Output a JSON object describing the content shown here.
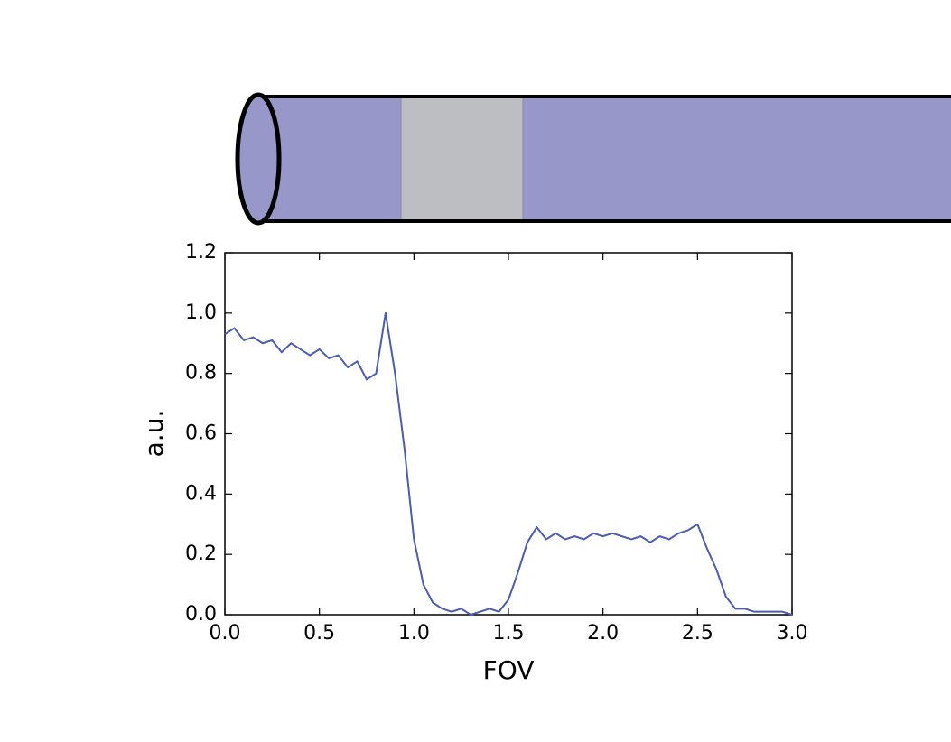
{
  "chart_data": {
    "type": "line",
    "xlabel": "FOV",
    "ylabel": "a.u.",
    "x": [
      0,
      0.05,
      0.1,
      0.15,
      0.2,
      0.25,
      0.3,
      0.35,
      0.4,
      0.45,
      0.5,
      0.55,
      0.6,
      0.65,
      0.7,
      0.75,
      0.8,
      0.85,
      0.9,
      0.95,
      1.0,
      1.05,
      1.1,
      1.15,
      1.2,
      1.25,
      1.3,
      1.35,
      1.4,
      1.45,
      1.5,
      1.55,
      1.6,
      1.65,
      1.7,
      1.75,
      1.8,
      1.85,
      1.9,
      1.95,
      2.0,
      2.05,
      2.1,
      2.15,
      2.2,
      2.25,
      2.3,
      2.35,
      2.4,
      2.45,
      2.5,
      2.55,
      2.6,
      2.65,
      2.7,
      2.75,
      2.8,
      2.85,
      2.9,
      2.95,
      3.0
    ],
    "values": [
      0.93,
      0.95,
      0.91,
      0.92,
      0.9,
      0.91,
      0.87,
      0.9,
      0.88,
      0.86,
      0.88,
      0.85,
      0.86,
      0.82,
      0.84,
      0.78,
      0.8,
      1.0,
      0.8,
      0.55,
      0.25,
      0.1,
      0.04,
      0.02,
      0.01,
      0.02,
      0.0,
      0.01,
      0.02,
      0.01,
      0.05,
      0.14,
      0.24,
      0.29,
      0.25,
      0.27,
      0.25,
      0.26,
      0.25,
      0.27,
      0.26,
      0.27,
      0.26,
      0.25,
      0.26,
      0.24,
      0.26,
      0.25,
      0.27,
      0.28,
      0.3,
      0.22,
      0.15,
      0.06,
      0.02,
      0.02,
      0.01,
      0.01,
      0.01,
      0.01,
      0.0
    ],
    "color": "#4c5cae",
    "xlim": [
      0,
      3
    ],
    "xticks": [
      {
        "value": 0,
        "label": "0.0"
      },
      {
        "value": 0.5,
        "label": "0.5"
      },
      {
        "value": 1,
        "label": "1.0"
      },
      {
        "value": 1.5,
        "label": "1.5"
      },
      {
        "value": 2,
        "label": "2.0"
      },
      {
        "value": 2.5,
        "label": "2.5"
      },
      {
        "value": 3,
        "label": "3.0"
      }
    ],
    "ylim": [
      0,
      1.2
    ],
    "yticks": [
      {
        "value": 0,
        "label": "0.0"
      },
      {
        "value": 0.2,
        "label": "0.2"
      },
      {
        "value": 0.4,
        "label": "0.4"
      },
      {
        "value": 0.6,
        "label": "0.6"
      },
      {
        "value": 0.8,
        "label": "0.8"
      },
      {
        "value": 1,
        "label": "1.0"
      },
      {
        "value": 1.2,
        "label": "1.2"
      }
    ],
    "grid": false
  }
}
